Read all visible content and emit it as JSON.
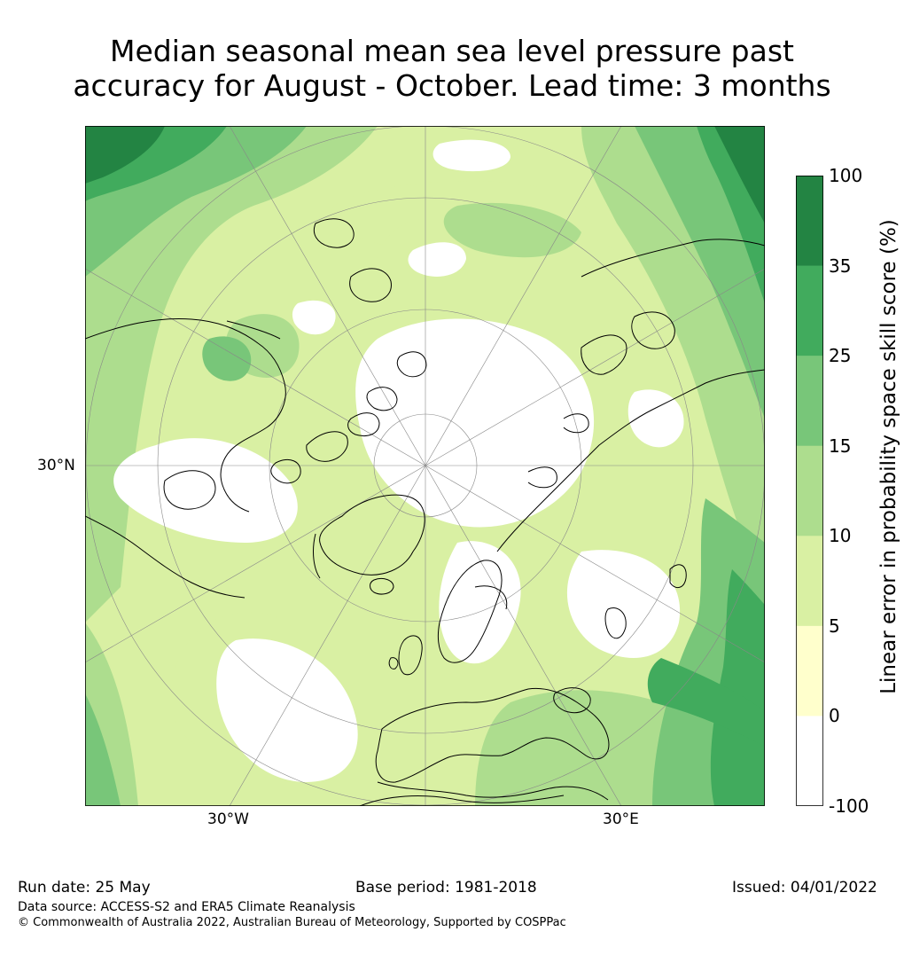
{
  "title": {
    "line1": "Median seasonal mean sea level pressure past",
    "line2": "accuracy for August - October. Lead time: 3 months"
  },
  "map": {
    "projection": "north-polar-stereographic",
    "lat_label": "30°N",
    "lon_labels": {
      "west": "30°W",
      "east": "30°E"
    }
  },
  "colorbar": {
    "label": "Linear error in probability space skill score (%)",
    "ticks": [
      "100",
      "35",
      "25",
      "15",
      "10",
      "5",
      "0",
      "-100"
    ],
    "bins": [
      {
        "from": "35",
        "to": "100",
        "color": "#238443"
      },
      {
        "from": "25",
        "to": "35",
        "color": "#41ab5d"
      },
      {
        "from": "15",
        "to": "25",
        "color": "#78c679"
      },
      {
        "from": "10",
        "to": "15",
        "color": "#addd8e"
      },
      {
        "from": "5",
        "to": "10",
        "color": "#d9f0a3"
      },
      {
        "from": "0",
        "to": "5",
        "color": "#ffffcc"
      },
      {
        "from": "-100",
        "to": "0",
        "color": "#ffffff"
      }
    ]
  },
  "footer": {
    "run_date": "Run date: 25 May",
    "base_period": "Base period: 1981-2018",
    "issued": "Issued: 04/01/2022",
    "data_source": "Data source: ACCESS-S2 and ERA5 Climate Reanalysis",
    "copyright": "© Commonwealth of Australia 2022, Australian Bureau of Meteorology, Supported by COSPPac"
  }
}
